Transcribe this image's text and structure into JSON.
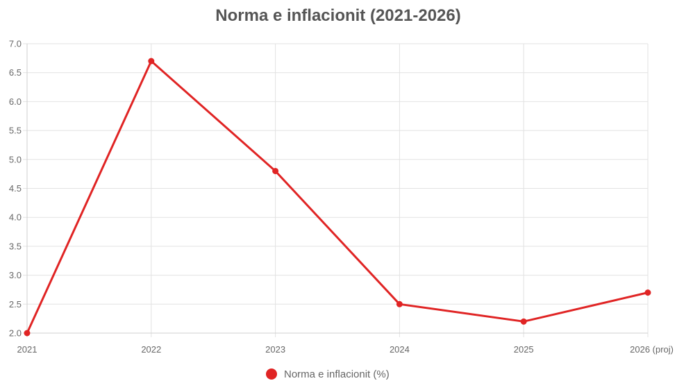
{
  "chart_data": {
    "type": "line",
    "title": "Norma e inflacionit (2021-2026)",
    "categories": [
      "2021",
      "2022",
      "2023",
      "2024",
      "2025",
      "2026 (proj)"
    ],
    "series": [
      {
        "name": "Norma e inflacionit (%)",
        "values": [
          2.0,
          6.7,
          4.8,
          2.5,
          2.2,
          2.7
        ],
        "color": "#e02424"
      }
    ],
    "ylim": [
      2.0,
      7.0
    ],
    "yticks": [
      "2.0",
      "2.5",
      "3.0",
      "3.5",
      "4.0",
      "4.5",
      "5.0",
      "5.5",
      "6.0",
      "6.5",
      "7.0"
    ],
    "grid": true,
    "legend_position": "bottom"
  },
  "colors": {
    "grid": "#e2e2e2",
    "axis": "#cfcfcf"
  }
}
